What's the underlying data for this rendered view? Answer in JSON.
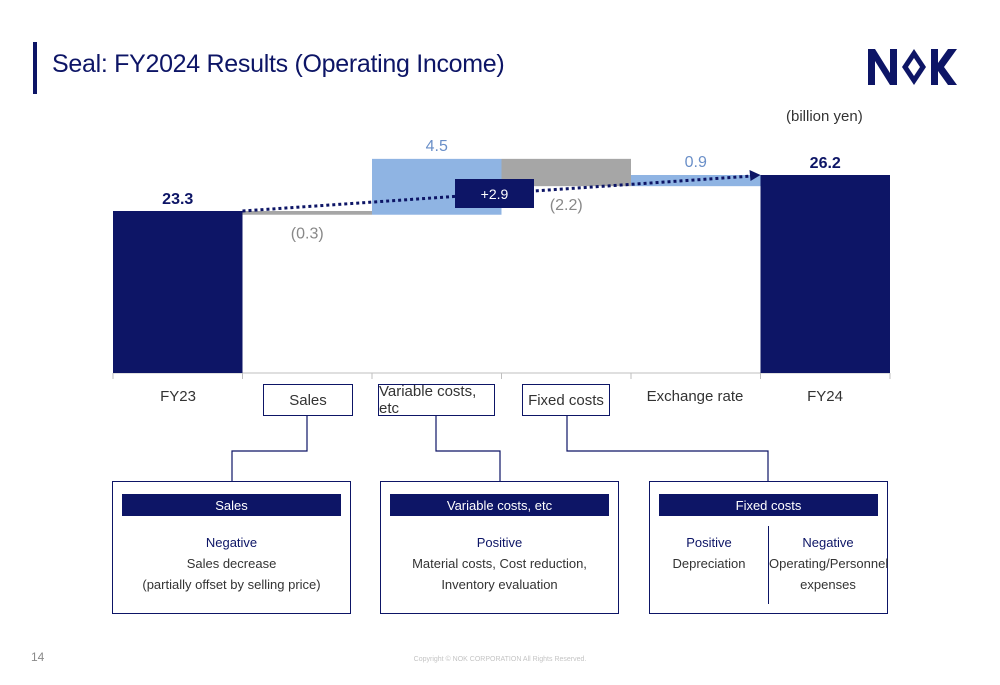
{
  "header": {
    "title": "Seal: FY2024 Results (Operating Income)",
    "unit": "(billion yen)"
  },
  "chart_data": {
    "type": "bar",
    "subtype": "waterfall",
    "categories": [
      "FY23",
      "Sales",
      "Variable costs, etc",
      "Fixed costs",
      "Exchange rate",
      "FY24"
    ],
    "values": [
      23.3,
      -0.3,
      4.5,
      -2.2,
      0.9,
      26.2
    ],
    "value_labels": [
      "23.3",
      "(0.3)",
      "4.5",
      "(2.2)",
      "0.9",
      "26.2"
    ],
    "kinds": [
      "total",
      "delta",
      "delta",
      "delta",
      "delta",
      "total"
    ],
    "net_change_label": "+2.9",
    "colors": {
      "total": "#0d1566",
      "increase": "#8fb4e3",
      "decrease": "#a6a6a6",
      "increase_label": "#6a8fc8",
      "decrease_label": "#888888"
    }
  },
  "category_boxes": {
    "fy23": "FY23",
    "sales": "Sales",
    "variable": "Variable costs, etc",
    "fixed": "Fixed costs",
    "exchange": "Exchange rate",
    "fy24": "FY24"
  },
  "panels": {
    "sales": {
      "heading": "Sales",
      "tone": "Negative",
      "line1": "Sales decrease",
      "line2": "(partially offset by selling price)"
    },
    "variable": {
      "heading": "Variable costs, etc",
      "tone": "Positive",
      "line1": "Material costs, Cost reduction,",
      "line2": "Inventory evaluation"
    },
    "fixed": {
      "heading": "Fixed costs",
      "left": {
        "tone": "Positive",
        "line1": "Depreciation"
      },
      "right": {
        "tone": "Negative",
        "line1": "Operating/Personnel",
        "line2": "expenses"
      }
    }
  },
  "footer": {
    "page_number": "14",
    "copyright": "Copyright © NOK CORPORATION All Rights Reserved."
  },
  "logo": {
    "text": "NOK",
    "color": "#0d1566"
  }
}
